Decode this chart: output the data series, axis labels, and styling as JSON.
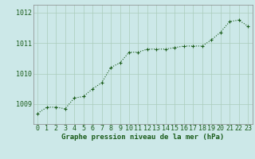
{
  "x": [
    0,
    1,
    2,
    3,
    4,
    5,
    6,
    7,
    8,
    9,
    10,
    11,
    12,
    13,
    14,
    15,
    16,
    17,
    18,
    19,
    20,
    21,
    22,
    23
  ],
  "y": [
    1008.7,
    1008.9,
    1008.9,
    1008.85,
    1009.2,
    1009.25,
    1009.5,
    1009.7,
    1010.2,
    1010.35,
    1010.7,
    1010.7,
    1010.8,
    1010.8,
    1010.8,
    1010.85,
    1010.9,
    1010.9,
    1010.9,
    1011.1,
    1011.35,
    1011.7,
    1011.75,
    1011.55
  ],
  "line_color": "#1a5c1a",
  "marker_color": "#1a5c1a",
  "bg_color": "#cce8e8",
  "grid_color": "#aaccbb",
  "xlabel": "Graphe pression niveau de la mer (hPa)",
  "yticks": [
    1009,
    1010,
    1011,
    1012
  ],
  "xticks": [
    0,
    1,
    2,
    3,
    4,
    5,
    6,
    7,
    8,
    9,
    10,
    11,
    12,
    13,
    14,
    15,
    16,
    17,
    18,
    19,
    20,
    21,
    22,
    23
  ],
  "ylim": [
    1008.35,
    1012.25
  ],
  "xlim": [
    -0.5,
    23.5
  ],
  "xlabel_fontsize": 6.5,
  "tick_fontsize": 6.0,
  "tick_color": "#1a5c1a"
}
